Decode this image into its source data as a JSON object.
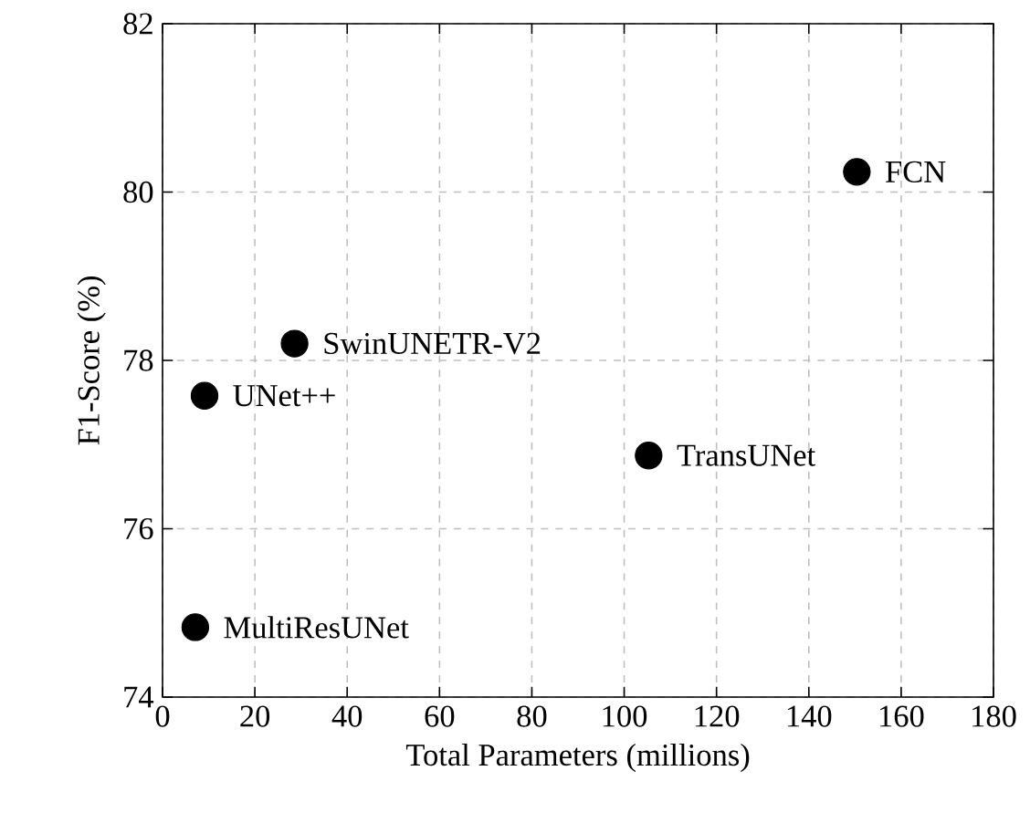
{
  "chart_data": {
    "type": "scatter",
    "xlabel": "Total Parameters (millions)",
    "ylabel": "F1-Score (%)",
    "xlim": [
      0,
      180
    ],
    "xticks": [
      0,
      20,
      40,
      60,
      80,
      100,
      120,
      140,
      160,
      180
    ],
    "ylim": [
      74,
      82
    ],
    "yticks": [
      74,
      76,
      78,
      80,
      82
    ],
    "grid": true,
    "marker": "circle",
    "series": [
      {
        "name": "FCN",
        "color": "#000000",
        "x": [
          150.4
        ],
        "values": [
          80.24
        ]
      },
      {
        "name": "SwinUNETR-V2",
        "color": "#000000",
        "x": [
          28.6
        ],
        "values": [
          78.2
        ]
      },
      {
        "name": "UNet++",
        "color": "#000000",
        "x": [
          9.1
        ],
        "values": [
          77.58
        ]
      },
      {
        "name": "TransUNet",
        "color": "#000000",
        "x": [
          105.3
        ],
        "values": [
          76.87
        ]
      },
      {
        "name": "MultiResUNet",
        "color": "#000000",
        "x": [
          7.1
        ],
        "values": [
          74.83
        ]
      }
    ]
  }
}
